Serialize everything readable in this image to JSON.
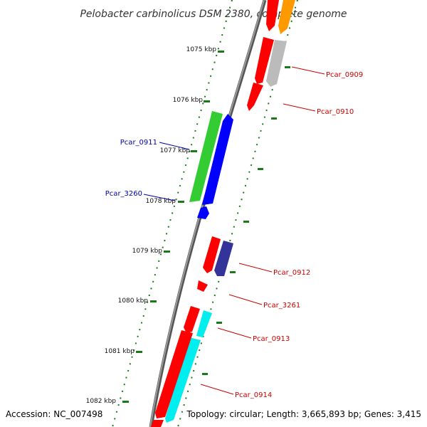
{
  "title": "Pelobacter carbinolicus DSM 2380, complete genome",
  "footer": {
    "accession": "Accession: NC_007498",
    "summary": "Topology: circular; Length: 3,665,893 bp; Genes: 3,415"
  },
  "ticks": [
    "1075 kbp",
    "1076 kbp",
    "1077 kbp",
    "1078 kbp",
    "1079 kbp",
    "1080 kbp",
    "1081 kbp",
    "1082 kbp"
  ],
  "labels": {
    "pcar_0909": "Pcar_0909",
    "pcar_0910": "Pcar_0910",
    "pcar_0911": "Pcar_0911",
    "pcar_3260": "Pcar_3260",
    "pcar_0912": "Pcar_0912",
    "pcar_3261": "Pcar_3261",
    "pcar_0913": "Pcar_0913",
    "pcar_0914": "Pcar_0914"
  },
  "colors": {
    "backbone": "#808080",
    "red_gene": "#ff0000",
    "orange_gene": "#ff9900",
    "gray_gene": "#bbbbbb",
    "green_gene": "#33cc33",
    "blue_gene": "#0000ff",
    "navy_gene": "#333399",
    "cyan_gene": "#00eeee",
    "tick_green": "#1a7a1a",
    "label_red": "#cc0000",
    "label_blue": "#0000aa"
  }
}
